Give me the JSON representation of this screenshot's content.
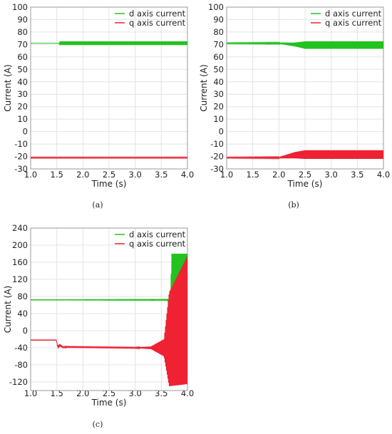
{
  "chart_data": [
    {
      "type": "line",
      "panel_label": "(a)",
      "xlabel": "Time (s)",
      "ylabel": "Current (A)",
      "xlim": [
        1.0,
        4.0
      ],
      "ylim": [
        -30,
        100
      ],
      "xticks": [
        "1.0",
        "1.5",
        "2.0",
        "2.5",
        "3.0",
        "3.5",
        "4.0"
      ],
      "yticks": [
        "-30",
        "-20",
        "-10",
        "0",
        "10",
        "20",
        "30",
        "40",
        "50",
        "60",
        "70",
        "80",
        "90",
        "100"
      ],
      "grid": true,
      "legend": "top-right",
      "series": [
        {
          "name": "d axis current",
          "color": "#22c21f",
          "x": [
            1.0,
            1.55,
            1.55,
            4.0
          ],
          "center": [
            71,
            71,
            71,
            71
          ],
          "amp": [
            0,
            0,
            1.5,
            1.5
          ]
        },
        {
          "name": "q axis current",
          "color": "#ee2233",
          "x": [
            1.0,
            4.0
          ],
          "center": [
            -21,
            -21
          ],
          "amp": [
            0.3,
            0.3
          ]
        }
      ]
    },
    {
      "type": "line",
      "panel_label": "(b)",
      "xlabel": "Time (s)",
      "ylabel": "Current (A)",
      "xlim": [
        1.0,
        4.0
      ],
      "ylim": [
        -30,
        100
      ],
      "xticks": [
        "1.0",
        "1.5",
        "2.0",
        "2.5",
        "3.0",
        "3.5",
        "4.0"
      ],
      "yticks": [
        "-30",
        "-20",
        "-10",
        "0",
        "10",
        "20",
        "30",
        "40",
        "50",
        "60",
        "70",
        "80",
        "90",
        "100"
      ],
      "grid": true,
      "legend": "top-right",
      "series": [
        {
          "name": "d axis current",
          "color": "#22c21f",
          "x": [
            1.0,
            2.0,
            2.3,
            2.5,
            4.0
          ],
          "center": [
            71,
            71,
            70,
            69.5,
            69.5
          ],
          "amp": [
            0.3,
            0.5,
            1.5,
            3,
            3
          ]
        },
        {
          "name": "q axis current",
          "color": "#ee2233",
          "x": [
            1.0,
            2.0,
            2.3,
            2.5,
            4.0
          ],
          "center": [
            -21,
            -21,
            -19,
            -18.5,
            -18.5
          ],
          "amp": [
            0.3,
            0.5,
            2.5,
            3.5,
            3.5
          ]
        }
      ]
    },
    {
      "type": "line",
      "panel_label": "(c)",
      "xlabel": "Time (s)",
      "ylabel": "Current (A)",
      "xlim": [
        1.0,
        4.0
      ],
      "ylim": [
        -140,
        240
      ],
      "xticks": [
        "1.0",
        "1.5",
        "2.0",
        "2.5",
        "3.0",
        "3.5",
        "4.0"
      ],
      "yticks": [
        "-120",
        "-80",
        "-40",
        "0",
        "40",
        "80",
        "120",
        "160",
        "200",
        "240"
      ],
      "grid": true,
      "legend": "top-right",
      "series": [
        {
          "name": "d axis current",
          "color": "#22c21f",
          "x": [
            1.0,
            1.5,
            1.6,
            3.6,
            3.67,
            3.7,
            4.0
          ],
          "center": [
            72,
            72,
            72,
            72,
            70,
            80,
            80
          ],
          "amp": [
            0.5,
            0.5,
            0.5,
            1,
            6,
            100,
            100
          ]
        },
        {
          "name": "q axis current",
          "color": "#ee2233",
          "x": [
            1.0,
            1.49,
            1.52,
            1.56,
            1.62,
            1.7,
            3.0,
            3.3,
            3.55,
            3.65,
            4.0
          ],
          "center": [
            -22,
            -22,
            -38,
            -34,
            -39,
            -38,
            -40,
            -40,
            -40,
            -20,
            25
          ],
          "amp": [
            0.5,
            0.5,
            4,
            3,
            2,
            1,
            1,
            3,
            20,
            110,
            150
          ]
        }
      ]
    }
  ]
}
